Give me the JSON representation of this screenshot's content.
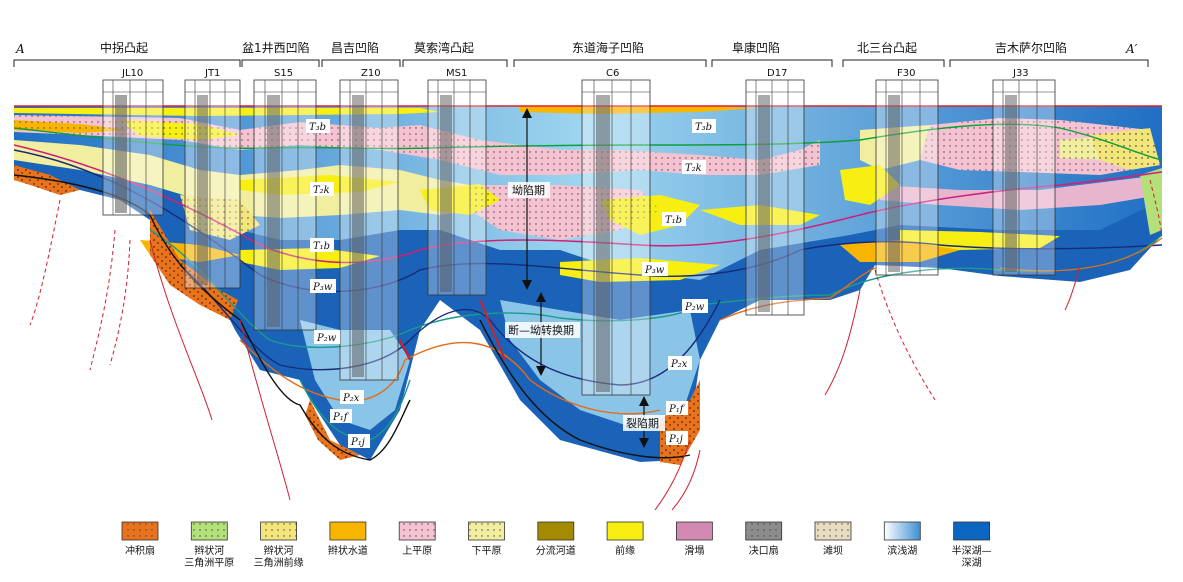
{
  "section": {
    "start_label": "A",
    "end_label": "A′"
  },
  "structures": [
    "中拐凸起",
    "盆1井西凹陷",
    "昌吉凹陷",
    "莫索湾凸起",
    "东道海子凹陷",
    "阜康凹陷",
    "北三台凸起",
    "吉木萨尔凹陷"
  ],
  "wells": [
    "JL10",
    "JT1",
    "S15",
    "Z10",
    "MS1",
    "C6",
    "D17",
    "F30",
    "J33"
  ],
  "units": {
    "T3b": "T₃b",
    "T2k": "T₂k",
    "T1b": "T₁b",
    "P3w": "P₃w",
    "P2w": "P₂w",
    "P2x": "P₂x",
    "P1f": "P₁f",
    "P1j": "P₁j"
  },
  "stages": {
    "sag": "坳陷期",
    "transition": "断—坳转换期",
    "rift": "裂陷期"
  },
  "legend": [
    {
      "label": "冲积扇",
      "color": "#e8731c",
      "pattern": "dots"
    },
    {
      "label": "辫状河\n三角洲平原",
      "color": "#b4e07a",
      "pattern": "dots"
    },
    {
      "label": "辫状河\n三角洲前缘",
      "color": "#f3e57a",
      "pattern": "dots"
    },
    {
      "label": "辫状水道",
      "color": "#f7b500",
      "pattern": "none"
    },
    {
      "label": "上平原",
      "color": "#f5c2d2",
      "pattern": "dots"
    },
    {
      "label": "下平原",
      "color": "#f1eea0",
      "pattern": "dots"
    },
    {
      "label": "分流河道",
      "color": "#a38a00",
      "pattern": "none"
    },
    {
      "label": "前缘",
      "color": "#f7ee12",
      "pattern": "none"
    },
    {
      "label": "滑塌",
      "color": "#d28ab3",
      "pattern": "none"
    },
    {
      "label": "决口扇",
      "color": "#8c8c8c",
      "pattern": "dots"
    },
    {
      "label": "滩坝",
      "color": "#e8dcc0",
      "pattern": "dots"
    },
    {
      "label": "滨浅湖",
      "color": "#7ec3e6",
      "pattern": "gradient"
    },
    {
      "label": "半深湖—\n深湖",
      "color": "#0b66c2",
      "pattern": "none"
    }
  ]
}
